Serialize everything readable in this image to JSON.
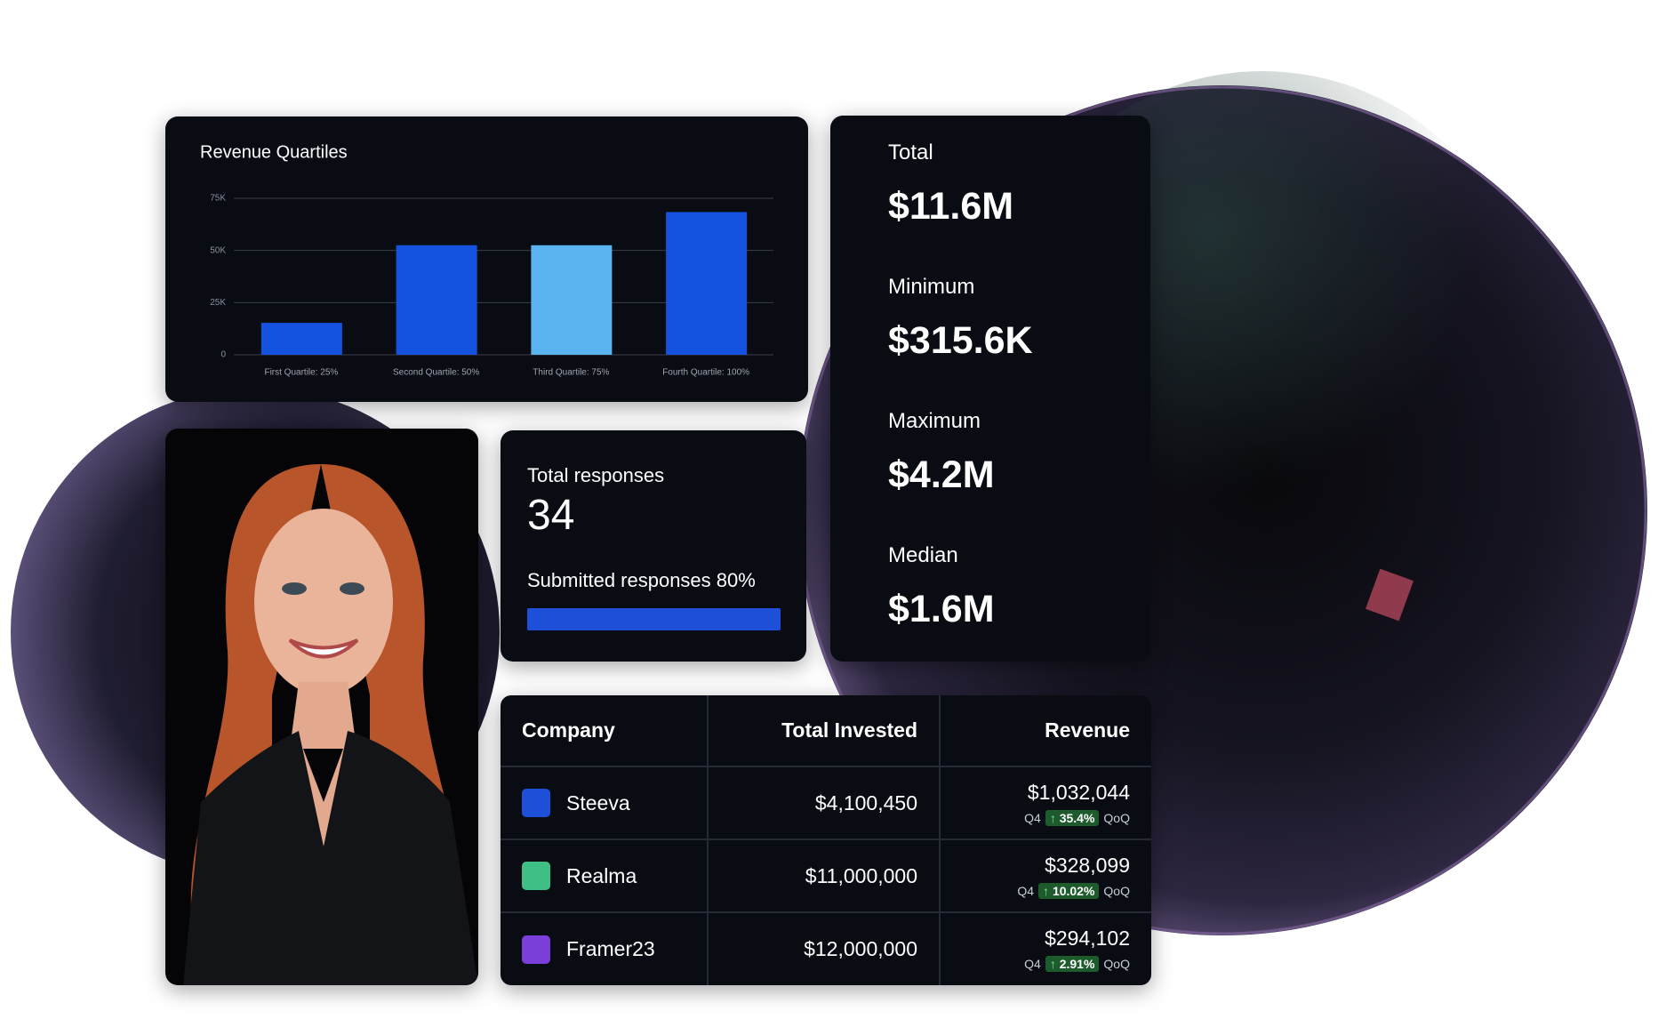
{
  "chart_data": {
    "type": "bar",
    "title": "Revenue Quartiles",
    "categories": [
      "First Quartile: 25%",
      "Second Quartile: 50%",
      "Third Quartile: 75%",
      "Fourth Quartile: 100%"
    ],
    "values": [
      15300,
      52500,
      52500,
      68400
    ],
    "colors": [
      "#1652e0",
      "#1652e0",
      "#5ab4f0",
      "#1652e0"
    ],
    "ylim": [
      0,
      75000
    ],
    "yticks": [
      0,
      {
        "value": 25000,
        "label": "25K"
      },
      {
        "value": 50000,
        "label": "50K"
      },
      {
        "value": 75000,
        "label": "75K"
      }
    ],
    "grid": true
  },
  "stats": [
    {
      "label": "Total",
      "value": "$11.6M"
    },
    {
      "label": "Minimum",
      "value": "$315.6K"
    },
    {
      "label": "Maximum",
      "value": "$4.2M"
    },
    {
      "label": "Median",
      "value": "$1.6M"
    }
  ],
  "responses": {
    "title": "Total responses",
    "count": "34",
    "submitted": "Submitted responses 80%"
  },
  "table": {
    "headers": [
      "Company",
      "Total Invested",
      "Revenue"
    ],
    "rows": [
      {
        "company": "Steeva",
        "invested": "$4,100,450",
        "revenue": "$1,032,044",
        "quarter": "Q4",
        "change": "35.4%",
        "period": "QoQ"
      },
      {
        "company": "Realma",
        "invested": "$11,000,000",
        "revenue": "$328,099",
        "quarter": "Q4",
        "change": "10.02%",
        "period": "QoQ"
      },
      {
        "company": "Framer23",
        "invested": "$12,000,000",
        "revenue": "$294,102",
        "quarter": "Q4",
        "change": "2.91%",
        "period": "QoQ"
      }
    ]
  }
}
